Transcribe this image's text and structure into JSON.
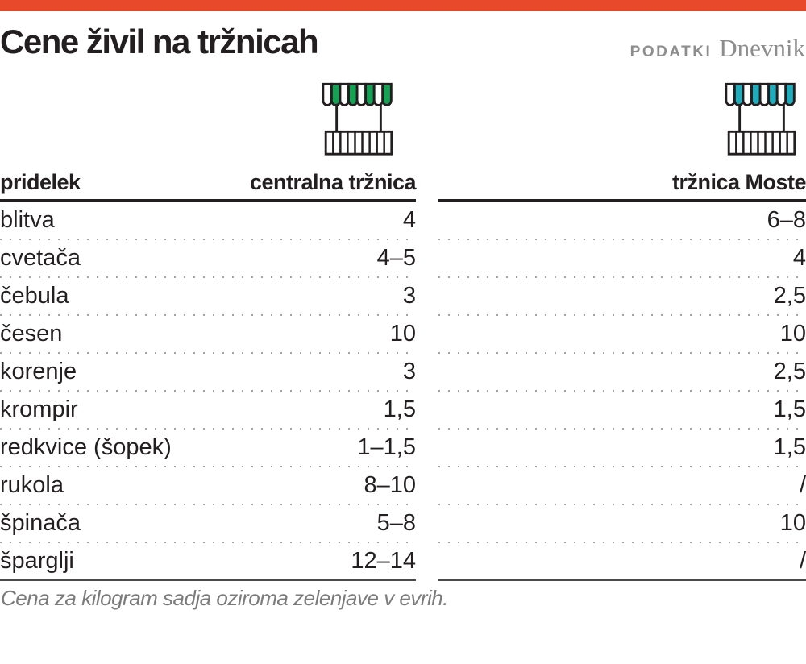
{
  "accent_color": "#e8492b",
  "outline_color": "#231f20",
  "header": {
    "title": "Cene živil na tržnicah",
    "brand_prefix": "PODATKI",
    "brand_name": "Dnevnik"
  },
  "icons": {
    "central_market": {
      "label": "market-stall-green",
      "color": "#15a254"
    },
    "moste_market": {
      "label": "market-stall-teal",
      "color": "#1fadbd"
    }
  },
  "tables": [
    {
      "produce_header": "pridelek",
      "price_header": "centralna tržnica",
      "rows": [
        {
          "produce": "blitva",
          "price": "4"
        },
        {
          "produce": "cvetača",
          "price": "4–5"
        },
        {
          "produce": "čebula",
          "price": "3"
        },
        {
          "produce": "česen",
          "price": "10"
        },
        {
          "produce": "korenje",
          "price": "3"
        },
        {
          "produce": "krompir",
          "price": "1,5"
        },
        {
          "produce": "redkvice (šopek)",
          "price": "1–1,5"
        },
        {
          "produce": "rukola",
          "price": "8–10"
        },
        {
          "produce": "špinača",
          "price": "5–8"
        },
        {
          "produce": "šparglji",
          "price": "12–14"
        }
      ]
    },
    {
      "produce_header": "",
      "price_header": "tržnica Moste",
      "rows": [
        {
          "price": "6–8"
        },
        {
          "price": "4"
        },
        {
          "price": "2,5"
        },
        {
          "price": "10"
        },
        {
          "price": "2,5"
        },
        {
          "price": "1,5"
        },
        {
          "price": "1,5"
        },
        {
          "price": "/"
        },
        {
          "price": "10"
        },
        {
          "price": "/"
        }
      ]
    }
  ],
  "footnote": "Cena za kilogram sadja oziroma zelenjave v evrih.",
  "chart_data": {
    "type": "table",
    "title": "Cene živil na tržnicah",
    "columns": [
      "pridelek",
      "centralna tržnica",
      "tržnica Moste"
    ],
    "rows": [
      [
        "blitva",
        "4",
        "6–8"
      ],
      [
        "cvetača",
        "4–5",
        "4"
      ],
      [
        "čebula",
        "3",
        "2,5"
      ],
      [
        "česen",
        "10",
        "10"
      ],
      [
        "korenje",
        "3",
        "2,5"
      ],
      [
        "krompir",
        "1,5",
        "1,5"
      ],
      [
        "redkvice (šopek)",
        "1–1,5",
        "1,5"
      ],
      [
        "rukola",
        "8–10",
        "/"
      ],
      [
        "špinača",
        "5–8",
        "10"
      ],
      [
        "šparglji",
        "12–14",
        "/"
      ]
    ],
    "note": "Cena za kilogram sadja oziroma zelenjave v evrih."
  }
}
